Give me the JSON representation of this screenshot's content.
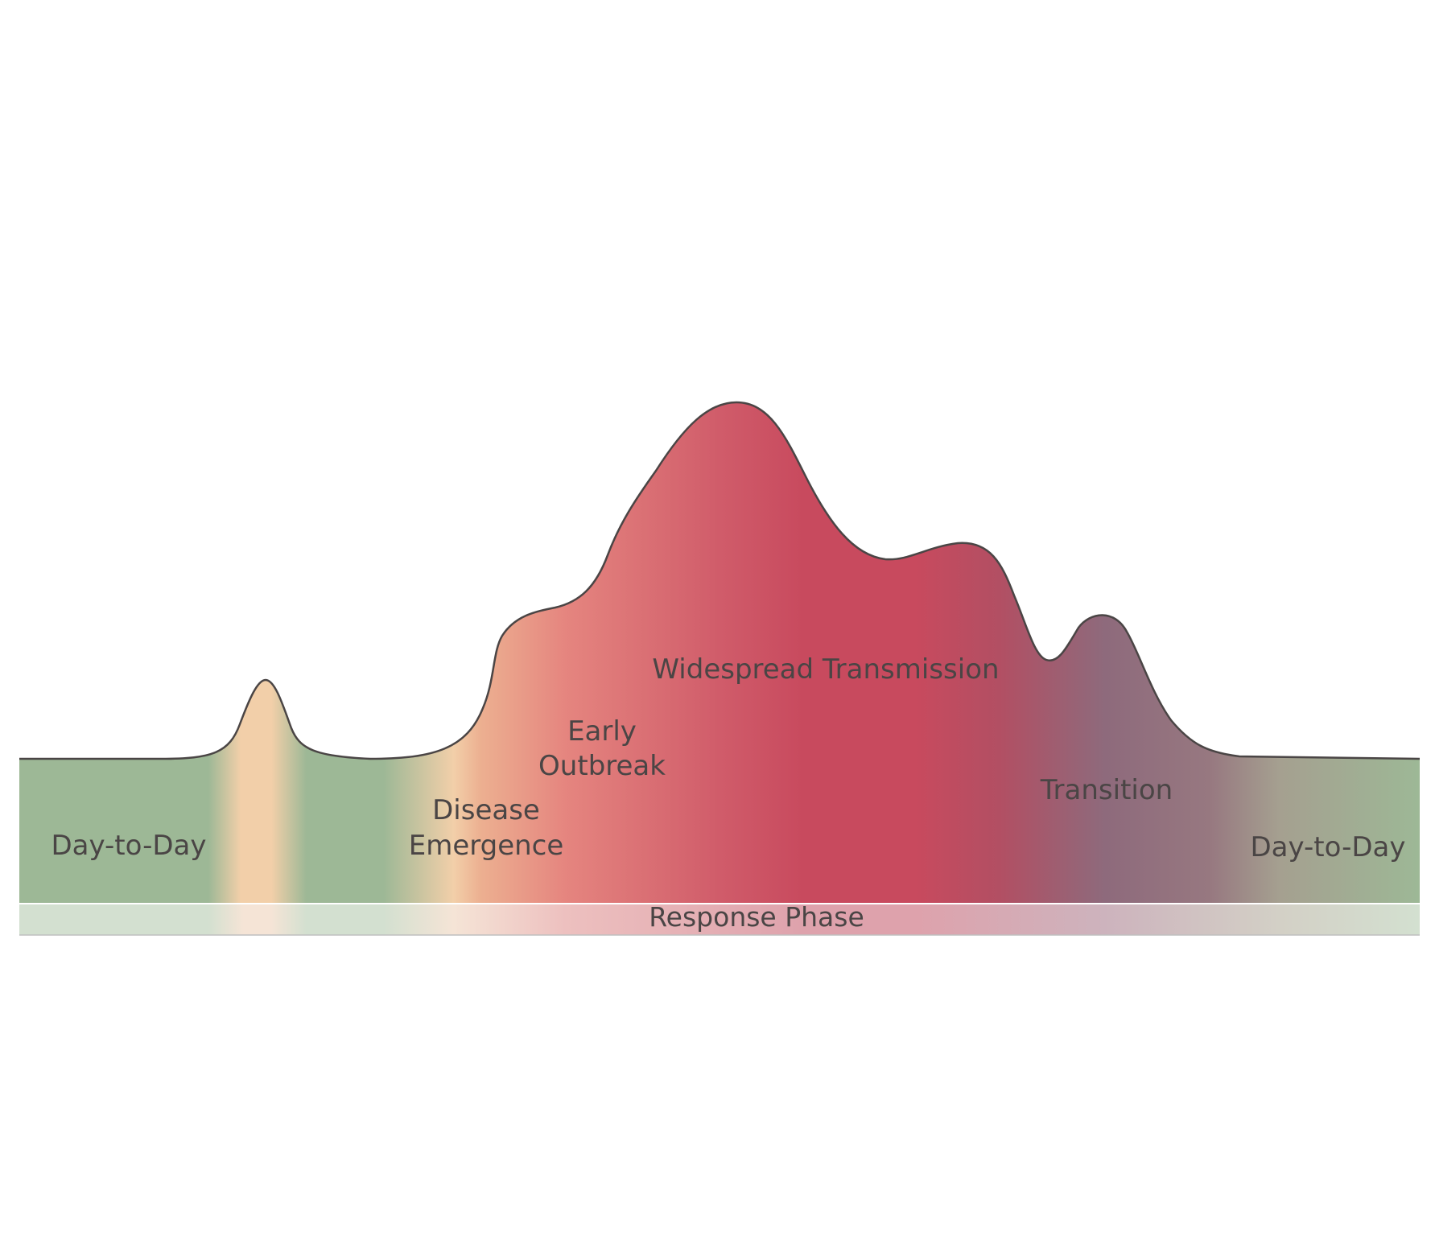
{
  "diagram": {
    "labels": {
      "day_to_day_left": "Day-to-Day",
      "disease_emergence_line1": "Disease",
      "disease_emergence_line2": "Emergence",
      "early_outbreak_line1": "Early",
      "early_outbreak_line2": "Outbreak",
      "widespread_transmission": "Widespread Transmission",
      "transition": "Transition",
      "day_to_day_right": "Day-to-Day"
    },
    "response_bar_label": "Response Phase",
    "colors": {
      "green": "#9db896",
      "peach": "#f2cfa9",
      "coral": "#e5857f",
      "crimson": "#c84a5e",
      "mauve": "#8e6a7c",
      "taupe": "#a5a090",
      "outline": "#4a4545",
      "text": "#4a4545"
    }
  }
}
